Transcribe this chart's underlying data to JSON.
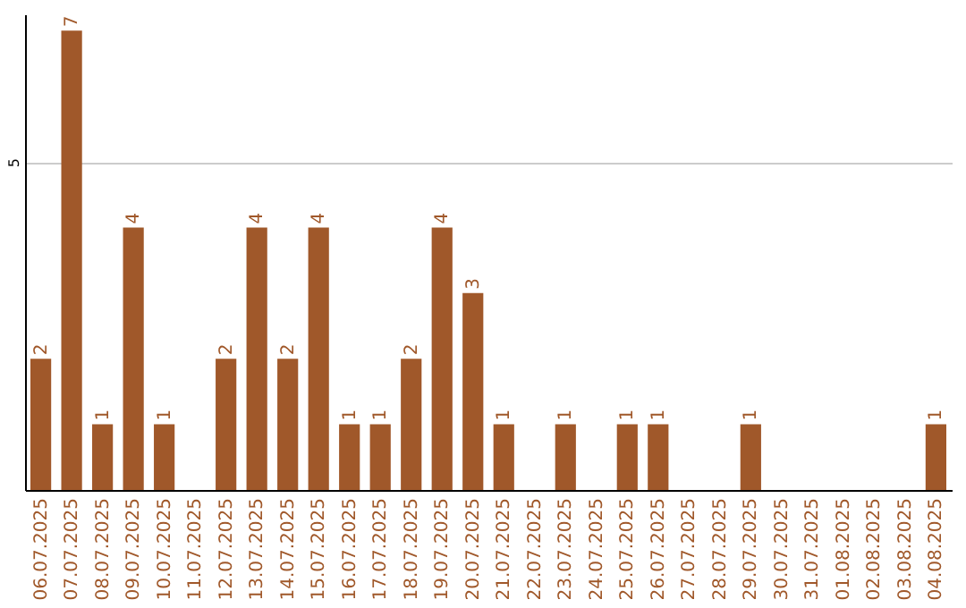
{
  "chart_data": {
    "type": "bar",
    "categories": [
      "06.07.2025",
      "07.07.2025",
      "08.07.2025",
      "09.07.2025",
      "10.07.2025",
      "11.07.2025",
      "12.07.2025",
      "13.07.2025",
      "14.07.2025",
      "15.07.2025",
      "16.07.2025",
      "17.07.2025",
      "18.07.2025",
      "19.07.2025",
      "20.07.2025",
      "21.07.2025",
      "22.07.2025",
      "23.07.2025",
      "24.07.2025",
      "25.07.2025",
      "26.07.2025",
      "27.07.2025",
      "28.07.2025",
      "29.07.2025",
      "30.07.2025",
      "31.07.2025",
      "01.08.2025",
      "02.08.2025",
      "03.08.2025",
      "04.08.2025"
    ],
    "values": [
      2,
      7,
      1,
      4,
      1,
      0,
      2,
      4,
      2,
      4,
      1,
      1,
      2,
      4,
      3,
      1,
      0,
      1,
      0,
      1,
      1,
      0,
      0,
      1,
      0,
      0,
      0,
      0,
      0,
      1
    ],
    "value_labels": [
      "2",
      "7",
      "1",
      "4",
      "1",
      null,
      "2",
      "4",
      "2",
      "4",
      "1",
      "1",
      "2",
      "4",
      "3",
      "1",
      null,
      "1",
      null,
      "1",
      "1",
      null,
      null,
      "1",
      null,
      null,
      null,
      null,
      null,
      "1"
    ],
    "color": "#a0582a",
    "ylim": [
      0,
      7.25
    ],
    "yticks": [
      5
    ],
    "grid": "y"
  }
}
